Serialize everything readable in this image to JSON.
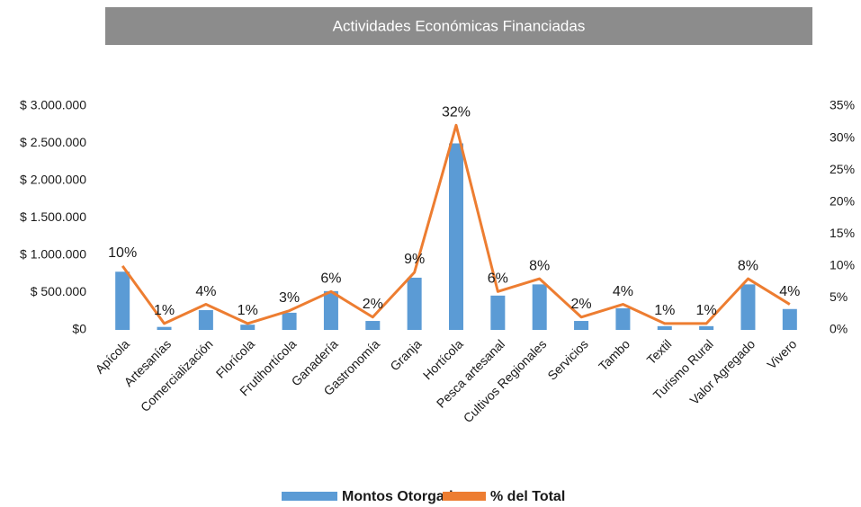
{
  "chart_data": {
    "type": "bar",
    "title": "Actividades Económicas Financiadas",
    "categories": [
      "Apícola",
      "Artesanías",
      "Comercialización",
      "Florícola",
      "Frutihortícola",
      "Ganadería",
      "Gastronomía",
      "Granja",
      "Hortícola",
      "Pesca artesanal",
      "Cultivos Regionales",
      "Servicios",
      "Tambo",
      "Textil",
      "Turismo Rural",
      "Valor Agregado",
      "Vivero"
    ],
    "series": [
      {
        "name": "Montos Otorgados",
        "type": "bar",
        "color": "#5b9bd5",
        "values": [
          780000,
          40000,
          265000,
          70000,
          230000,
          520000,
          120000,
          700000,
          2500000,
          460000,
          610000,
          120000,
          290000,
          50000,
          50000,
          610000,
          280000
        ]
      },
      {
        "name": "% del Total",
        "type": "line",
        "axis": "y2",
        "color": "#ed7d31",
        "values": [
          10,
          1,
          4,
          1,
          3,
          6,
          2,
          9,
          32,
          6,
          8,
          2,
          4,
          1,
          1,
          8,
          4
        ],
        "value_labels": [
          "10%",
          "1%",
          "4%",
          "1%",
          "3%",
          "6%",
          "2%",
          "9%",
          "32%",
          "6%",
          "8%",
          "2%",
          "4%",
          "1%",
          "1%",
          "8%",
          "4%"
        ]
      }
    ],
    "ylim": [
      0,
      3000000
    ],
    "yticks": [
      {
        "value": 0,
        "label": "$0"
      },
      {
        "value": 500000,
        "label": "$ 500.000"
      },
      {
        "value": 1000000,
        "label": "$ 1.000.000"
      },
      {
        "value": 1500000,
        "label": "$ 1.500.000"
      },
      {
        "value": 2000000,
        "label": "$ 2.000.000"
      },
      {
        "value": 2500000,
        "label": "$ 2.500.000"
      },
      {
        "value": 3000000,
        "label": "$ 3.000.000"
      }
    ],
    "y2lim": [
      0,
      35
    ],
    "y2ticks": [
      {
        "value": 0,
        "label": "0%"
      },
      {
        "value": 5,
        "label": "5%"
      },
      {
        "value": 10,
        "label": "10%"
      },
      {
        "value": 15,
        "label": "15%"
      },
      {
        "value": 20,
        "label": "20%"
      },
      {
        "value": 25,
        "label": "25%"
      },
      {
        "value": 30,
        "label": "30%"
      },
      {
        "value": 35,
        "label": "35%"
      }
    ],
    "grid": false,
    "legend": "bottom"
  }
}
